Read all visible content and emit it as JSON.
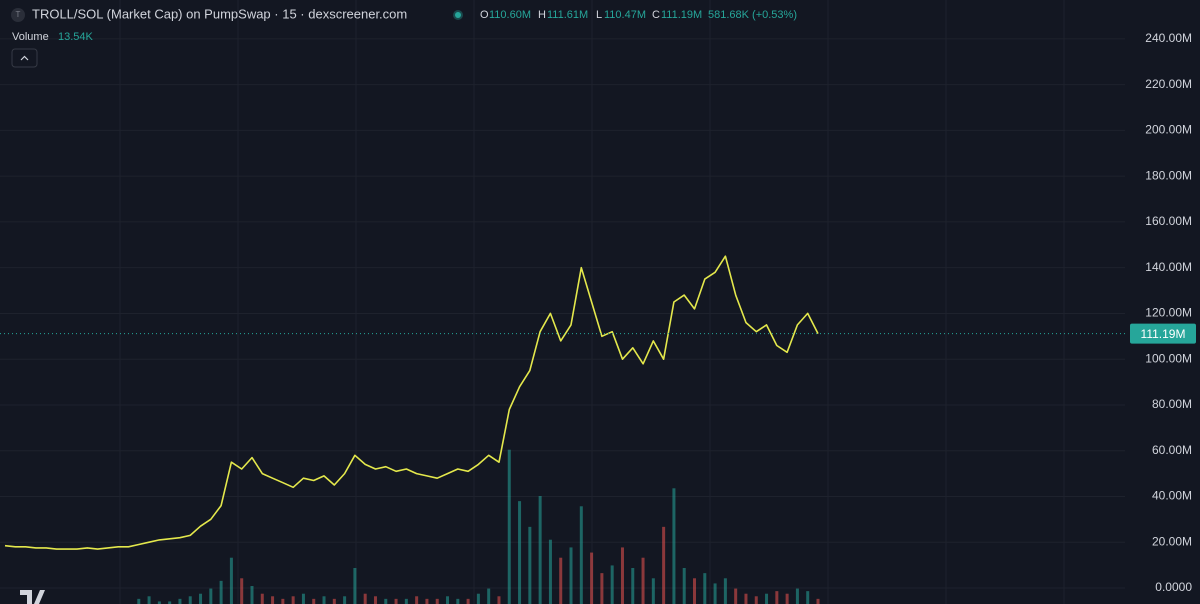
{
  "chart_data": {
    "type": "line",
    "title": "TROLL/SOL (Market Cap) on PumpSwap · 15 · dexscreener.com",
    "ohlc": {
      "o_label": "O",
      "o": "110.60M",
      "h_label": "H",
      "h": "111.61M",
      "l_label": "L",
      "l": "110.47M",
      "c_label": "C",
      "c": "111.19M",
      "change": "581.68K (+0.53%)"
    },
    "volume_label": "Volume",
    "volume_value": "13.54K",
    "color": "#e4e84c",
    "values": [
      18.5,
      18,
      18,
      17.5,
      17.5,
      17,
      17,
      17,
      17.5,
      17,
      17.5,
      18,
      18,
      19,
      20,
      21,
      21.5,
      22,
      23,
      27,
      30,
      36,
      55,
      52,
      57,
      50,
      48,
      46,
      44,
      48,
      47,
      49,
      45,
      50,
      58,
      54,
      52,
      53,
      51,
      52,
      50,
      49,
      48,
      50,
      52,
      51,
      54,
      58,
      55,
      78,
      88,
      95,
      112,
      120,
      108,
      115,
      140,
      125,
      110,
      112,
      100,
      105,
      98,
      108,
      100,
      125,
      128,
      122,
      135,
      138,
      145,
      128,
      116,
      112,
      115,
      106,
      103,
      115,
      120,
      111.19
    ],
    "volume": {
      "values": [
        0,
        0,
        0,
        0,
        0,
        0,
        0,
        0,
        0,
        0,
        0,
        0,
        0,
        2,
        3,
        1,
        1,
        2,
        3,
        4,
        6,
        9,
        18,
        10,
        7,
        4,
        3,
        2,
        3,
        4,
        2,
        3,
        2,
        3,
        14,
        4,
        3,
        2,
        2,
        2,
        3,
        2,
        2,
        3,
        2,
        2,
        4,
        6,
        3,
        60,
        40,
        30,
        42,
        25,
        18,
        22,
        38,
        20,
        12,
        15,
        22,
        14,
        18,
        10,
        30,
        45,
        14,
        10,
        12,
        8,
        10,
        6,
        4,
        3,
        4,
        5,
        4,
        6,
        5,
        2
      ],
      "vlim": [
        0,
        70
      ],
      "up_color": "#26a69a",
      "down_color": "#ef5350"
    },
    "last_price": {
      "value": 111.19,
      "label": "111.19M"
    },
    "ylim": [
      -7,
      257
    ],
    "yticks": [
      {
        "value": 0,
        "label": "0.0000"
      },
      {
        "value": 20,
        "label": "20.00M"
      },
      {
        "value": 40,
        "label": "40.00M"
      },
      {
        "value": 60,
        "label": "60.00M"
      },
      {
        "value": 80,
        "label": "80.00M"
      },
      {
        "value": 100,
        "label": "100.00M"
      },
      {
        "value": 120,
        "label": "120.00M"
      },
      {
        "value": 140,
        "label": "140.00M"
      },
      {
        "value": 160,
        "label": "160.00M"
      },
      {
        "value": 180,
        "label": "180.00M"
      },
      {
        "value": 200,
        "label": "200.00M"
      },
      {
        "value": 220,
        "label": "220.00M"
      },
      {
        "value": 240,
        "label": "240.00M"
      }
    ],
    "grid": true
  }
}
